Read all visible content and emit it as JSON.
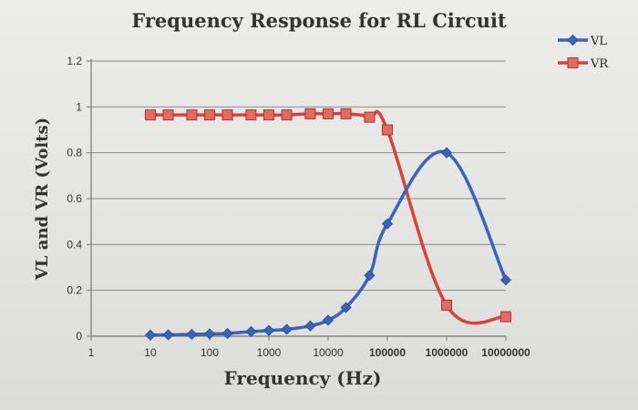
{
  "chart_data": {
    "type": "line",
    "title": "Frequency Response for RL Circuit",
    "xlabel": "Frequency (Hz)",
    "ylabel": "VL and VR (Volts)",
    "x_scale": "log",
    "x_ticks": [
      "1",
      "10",
      "100",
      "1000",
      "10000",
      "100000",
      "1000000",
      "10000000"
    ],
    "y_ticks": [
      "0",
      "0.2",
      "0.4",
      "0.6",
      "0.8",
      "1",
      "1.2"
    ],
    "ylim": [
      0,
      1.2
    ],
    "grid": true,
    "legend_position": "top-right",
    "series": [
      {
        "name": "VL",
        "color": "#3a64b6",
        "marker": "diamond",
        "smooth": true,
        "x": [
          10,
          20,
          50,
          100,
          200,
          500,
          1000,
          2000,
          5000,
          10000,
          20000,
          50000,
          100000,
          1000000,
          10000000
        ],
        "y": [
          0.005,
          0.006,
          0.008,
          0.01,
          0.012,
          0.02,
          0.025,
          0.03,
          0.045,
          0.07,
          0.125,
          0.265,
          0.49,
          0.8,
          0.245
        ]
      },
      {
        "name": "VR",
        "color": "#d9423c",
        "marker": "square",
        "smooth": true,
        "x": [
          10,
          20,
          50,
          100,
          200,
          500,
          1000,
          2000,
          5000,
          10000,
          20000,
          50000,
          100000,
          1000000,
          10000000
        ],
        "y": [
          0.965,
          0.965,
          0.965,
          0.965,
          0.965,
          0.965,
          0.965,
          0.965,
          0.97,
          0.97,
          0.97,
          0.955,
          0.9,
          0.135,
          0.085
        ]
      }
    ]
  }
}
